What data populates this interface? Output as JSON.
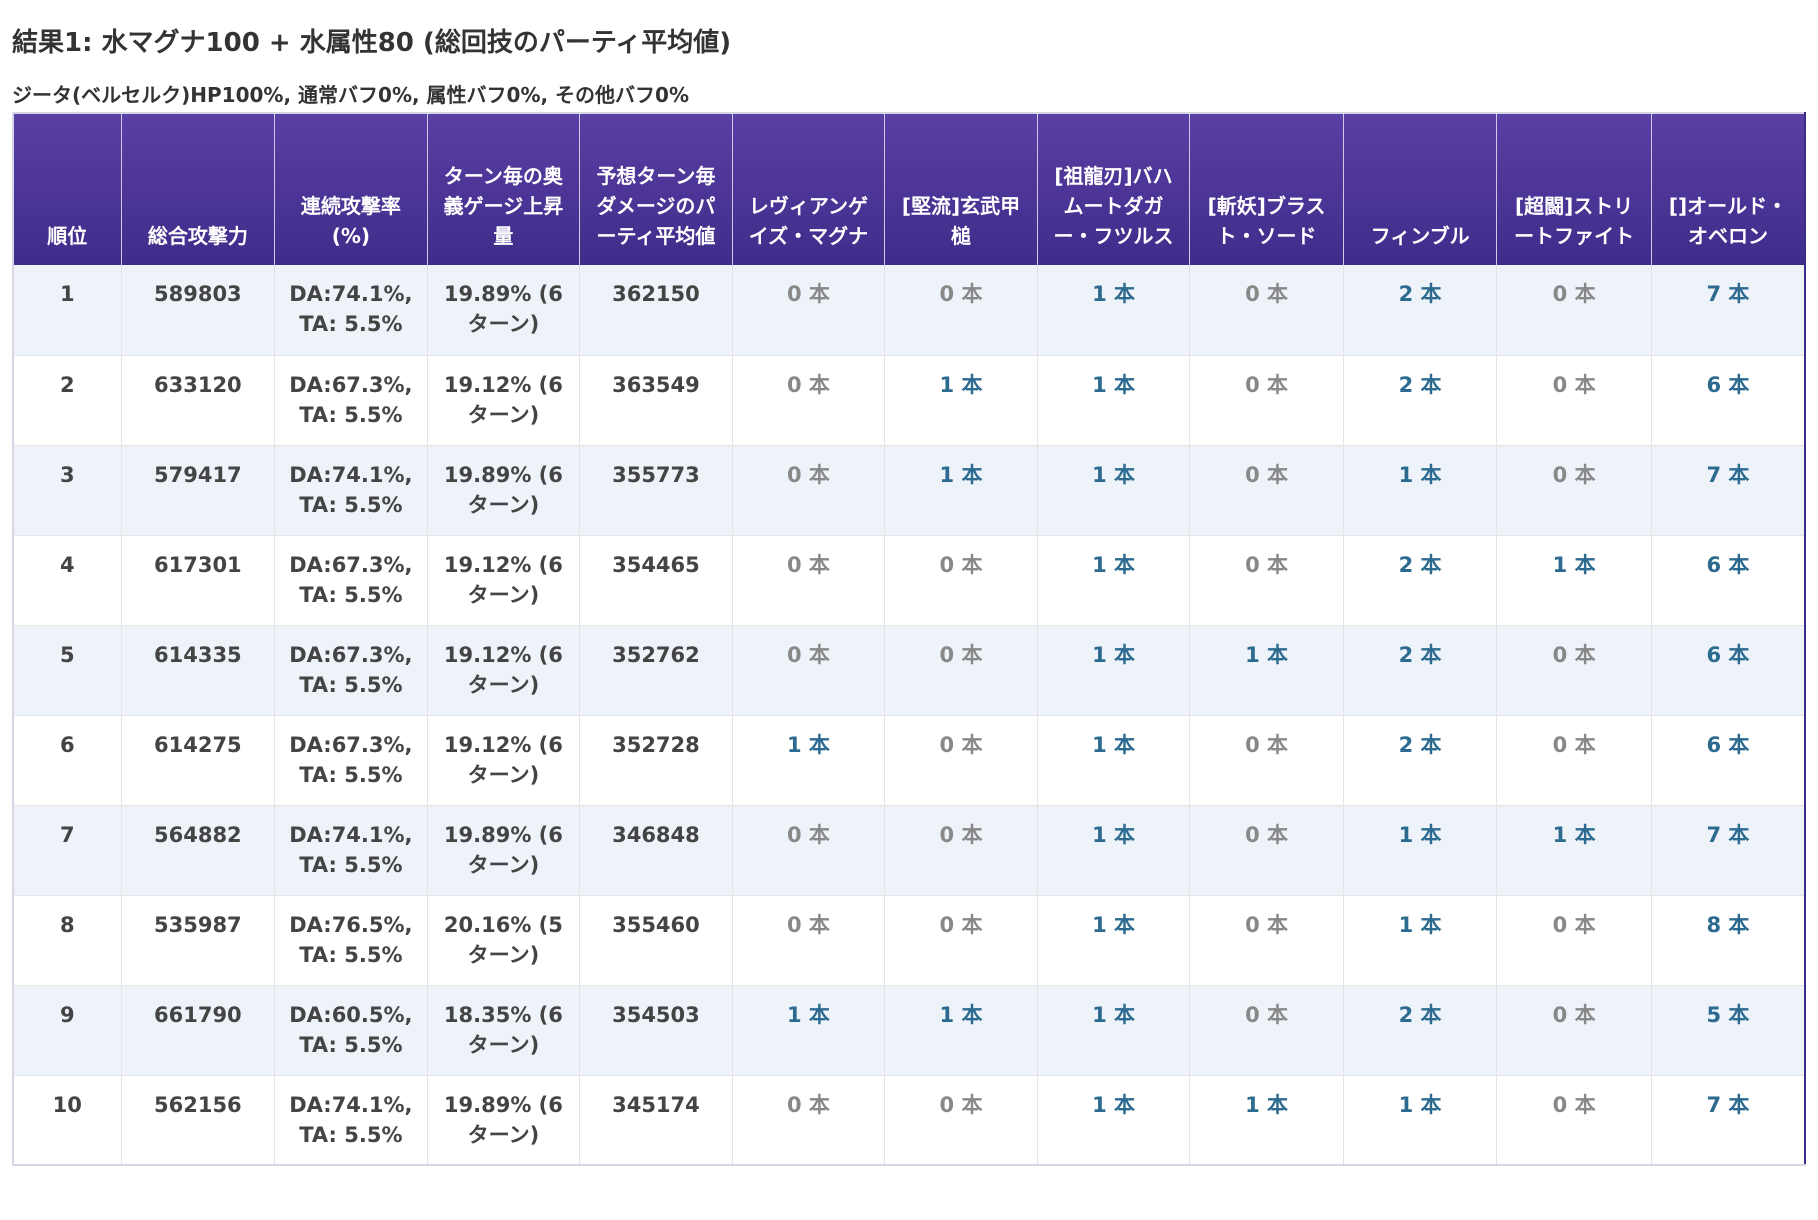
{
  "heading": {
    "title": "結果1: 水マグナ100 + 水属性80 (総回技のパーティ平均値)",
    "subtitle": "ジータ(ベルセルク)HP100%, 通常バフ0%, 属性バフ0%, その他バフ0%"
  },
  "colors": {
    "header_bg": "#4a3496",
    "row_alt_bg": "#eef3fa",
    "count_nonzero": "#2c6a8f",
    "count_zero": "#888888"
  },
  "table": {
    "headers": [
      "順位",
      "総合攻撃力",
      "連続攻撃率(%)",
      "ターン毎の奥義ゲージ上昇量",
      "予想ターン毎ダメージのパーティ平均値",
      "レヴィアンゲイズ・マグナ",
      "[堅流]玄武甲槌",
      "[祖龍刃]バハムートダガー・フツルス",
      "[斬妖]ブラスト・ソード",
      "フィンブル",
      "[超闘]ストリートファイト",
      "[]オールド・オベロン"
    ],
    "rows": [
      {
        "rank": "1",
        "attack": "589803",
        "rate": [
          "DA:74.1%,",
          "TA: 5.5%"
        ],
        "gauge": [
          "19.89% (6",
          "ターン)"
        ],
        "damage": "362150",
        "counts": [
          "0 本",
          "0 本",
          "1 本",
          "0 本",
          "2 本",
          "0 本",
          "7 本"
        ]
      },
      {
        "rank": "2",
        "attack": "633120",
        "rate": [
          "DA:67.3%,",
          "TA: 5.5%"
        ],
        "gauge": [
          "19.12% (6",
          "ターン)"
        ],
        "damage": "363549",
        "counts": [
          "0 本",
          "1 本",
          "1 本",
          "0 本",
          "2 本",
          "0 本",
          "6 本"
        ]
      },
      {
        "rank": "3",
        "attack": "579417",
        "rate": [
          "DA:74.1%,",
          "TA: 5.5%"
        ],
        "gauge": [
          "19.89% (6",
          "ターン)"
        ],
        "damage": "355773",
        "counts": [
          "0 本",
          "1 本",
          "1 本",
          "0 本",
          "1 本",
          "0 本",
          "7 本"
        ]
      },
      {
        "rank": "4",
        "attack": "617301",
        "rate": [
          "DA:67.3%,",
          "TA: 5.5%"
        ],
        "gauge": [
          "19.12% (6",
          "ターン)"
        ],
        "damage": "354465",
        "counts": [
          "0 本",
          "0 本",
          "1 本",
          "0 本",
          "2 本",
          "1 本",
          "6 本"
        ]
      },
      {
        "rank": "5",
        "attack": "614335",
        "rate": [
          "DA:67.3%,",
          "TA: 5.5%"
        ],
        "gauge": [
          "19.12% (6",
          "ターン)"
        ],
        "damage": "352762",
        "counts": [
          "0 本",
          "0 本",
          "1 本",
          "1 本",
          "2 本",
          "0 本",
          "6 本"
        ]
      },
      {
        "rank": "6",
        "attack": "614275",
        "rate": [
          "DA:67.3%,",
          "TA: 5.5%"
        ],
        "gauge": [
          "19.12% (6",
          "ターン)"
        ],
        "damage": "352728",
        "counts": [
          "1 本",
          "0 本",
          "1 本",
          "0 本",
          "2 本",
          "0 本",
          "6 本"
        ]
      },
      {
        "rank": "7",
        "attack": "564882",
        "rate": [
          "DA:74.1%,",
          "TA: 5.5%"
        ],
        "gauge": [
          "19.89% (6",
          "ターン)"
        ],
        "damage": "346848",
        "counts": [
          "0 本",
          "0 本",
          "1 本",
          "0 本",
          "1 本",
          "1 本",
          "7 本"
        ]
      },
      {
        "rank": "8",
        "attack": "535987",
        "rate": [
          "DA:76.5%,",
          "TA: 5.5%"
        ],
        "gauge": [
          "20.16% (5",
          "ターン)"
        ],
        "damage": "355460",
        "counts": [
          "0 本",
          "0 本",
          "1 本",
          "0 本",
          "1 本",
          "0 本",
          "8 本"
        ]
      },
      {
        "rank": "9",
        "attack": "661790",
        "rate": [
          "DA:60.5%,",
          "TA: 5.5%"
        ],
        "gauge": [
          "18.35% (6",
          "ターン)"
        ],
        "damage": "354503",
        "counts": [
          "1 本",
          "1 本",
          "1 本",
          "0 本",
          "2 本",
          "0 本",
          "5 本"
        ]
      },
      {
        "rank": "10",
        "attack": "562156",
        "rate": [
          "DA:74.1%,",
          "TA: 5.5%"
        ],
        "gauge": [
          "19.89% (6",
          "ターン)"
        ],
        "damage": "345174",
        "counts": [
          "0 本",
          "0 本",
          "1 本",
          "1 本",
          "1 本",
          "0 本",
          "7 本"
        ]
      }
    ]
  }
}
